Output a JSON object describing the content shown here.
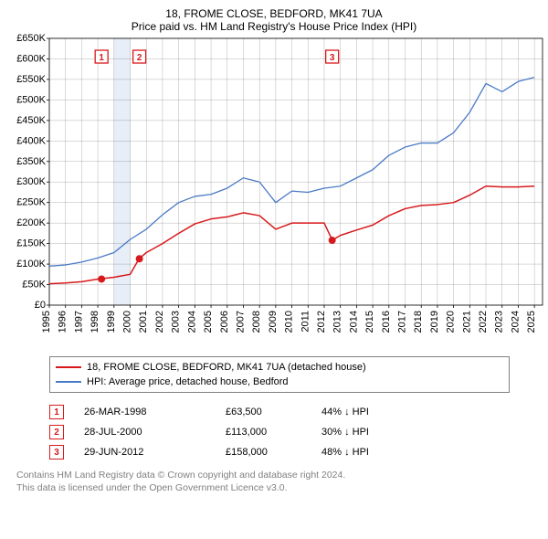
{
  "title_line1": "18, FROME CLOSE, BEDFORD, MK41 7UA",
  "title_line2": "Price paid vs. HM Land Registry's House Price Index (HPI)",
  "title_fontsize": 12,
  "chart": {
    "type": "line",
    "background_color": "#ffffff",
    "grid_color": "#000000",
    "grid_width": 0.15,
    "plot_border_color": "#000000",
    "x_years": [
      1995,
      1996,
      1997,
      1998,
      1999,
      2000,
      2001,
      2002,
      2003,
      2004,
      2005,
      2006,
      2007,
      2008,
      2009,
      2010,
      2011,
      2012,
      2013,
      2014,
      2015,
      2016,
      2017,
      2018,
      2019,
      2020,
      2021,
      2022,
      2023,
      2024,
      2025
    ],
    "xlim": [
      1995,
      2025.5
    ],
    "ylim": [
      0,
      650000
    ],
    "ytick_step": 50000,
    "y_ticks": [
      "£0",
      "£50K",
      "£100K",
      "£150K",
      "£200K",
      "£250K",
      "£300K",
      "£350K",
      "£400K",
      "£450K",
      "£500K",
      "£550K",
      "£600K",
      "£650K"
    ],
    "y_label_fontsize": 11,
    "x_label_fontsize": 11,
    "highlight_band": {
      "x_start": 1999,
      "x_end": 2000,
      "color": "#e8eef7"
    },
    "series": [
      {
        "name": "price_paid",
        "color": "#d7191c",
        "width": 1.5,
        "x": [
          1995,
          1996,
          1997,
          1998,
          1999,
          2000,
          2000.55,
          2001,
          2002,
          2003,
          2004,
          2005,
          2006,
          2007,
          2008,
          2009,
          2010,
          2011,
          2012,
          2012.5,
          2013,
          2014,
          2015,
          2016,
          2017,
          2018,
          2019,
          2020,
          2021,
          2022,
          2023,
          2024,
          2025
        ],
        "y": [
          52000,
          54000,
          57000,
          63500,
          68000,
          75000,
          113000,
          128000,
          150000,
          175000,
          198000,
          210000,
          215000,
          225000,
          218000,
          185000,
          200000,
          200000,
          200000,
          158000,
          170000,
          183000,
          195000,
          218000,
          235000,
          243000,
          245000,
          250000,
          268000,
          290000,
          288000,
          288000,
          290000
        ]
      },
      {
        "name": "hpi",
        "color": "#4a7ac7",
        "width": 1.3,
        "x": [
          1995,
          1996,
          1997,
          1998,
          1999,
          2000,
          2001,
          2002,
          2003,
          2004,
          2005,
          2006,
          2007,
          2008,
          2009,
          2010,
          2011,
          2012,
          2013,
          2014,
          2015,
          2016,
          2017,
          2018,
          2019,
          2020,
          2021,
          2022,
          2023,
          2024,
          2025
        ],
        "y": [
          95000,
          98000,
          105000,
          115000,
          128000,
          160000,
          185000,
          220000,
          250000,
          265000,
          270000,
          285000,
          310000,
          300000,
          250000,
          278000,
          275000,
          285000,
          290000,
          310000,
          330000,
          365000,
          385000,
          395000,
          395000,
          420000,
          470000,
          540000,
          520000,
          545000,
          555000
        ]
      }
    ],
    "sale_points": {
      "color_fill": "#d7191c",
      "color_stroke": "#d7191c",
      "radius": 3.5,
      "points": [
        {
          "x": 1998.23,
          "y": 63500
        },
        {
          "x": 2000.57,
          "y": 113000
        },
        {
          "x": 2012.49,
          "y": 158000
        }
      ]
    },
    "markers": [
      {
        "num": "1",
        "x": 1998.23
      },
      {
        "num": "2",
        "x": 2000.57
      },
      {
        "num": "3",
        "x": 2012.49
      }
    ]
  },
  "legend": {
    "border_color": "#808080",
    "entries": [
      {
        "color": "#d7191c",
        "label": "18, FROME CLOSE, BEDFORD, MK41 7UA (detached house)"
      },
      {
        "color": "#4a7ac7",
        "label": "HPI: Average price, detached house, Bedford"
      }
    ]
  },
  "sales_table": [
    {
      "num": "1",
      "date": "26-MAR-1998",
      "price": "£63,500",
      "diff": "44% ↓ HPI"
    },
    {
      "num": "2",
      "date": "28-JUL-2000",
      "price": "£113,000",
      "diff": "30% ↓ HPI"
    },
    {
      "num": "3",
      "date": "29-JUN-2012",
      "price": "£158,000",
      "diff": "48% ↓ HPI"
    }
  ],
  "footer_line1": "Contains HM Land Registry data © Crown copyright and database right 2024.",
  "footer_line2": "This data is licensed under the Open Government Licence v3.0.",
  "colors": {
    "red": "#d7191c",
    "blue": "#4a7ac7",
    "grey": "#808080"
  }
}
